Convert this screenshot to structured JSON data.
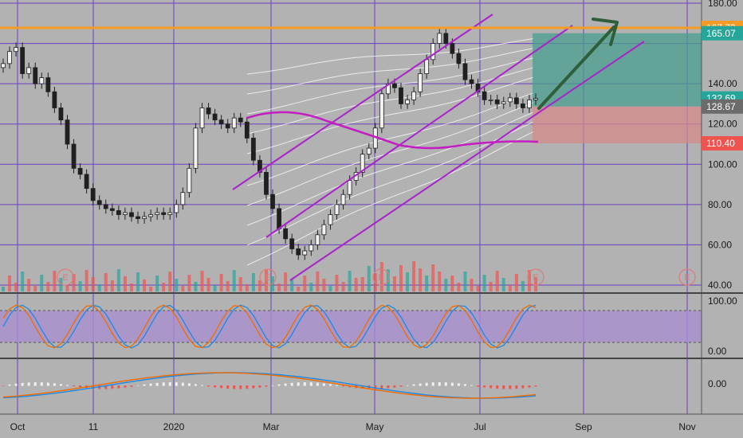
{
  "chart_data": {
    "type": "candlestick",
    "price_axis": {
      "ylim": [
        40,
        180
      ],
      "ticks": [
        "180.00",
        "140.00",
        "120.00",
        "100.00",
        "80.00",
        "60.00",
        "40.00"
      ],
      "tick_values": [
        180,
        140,
        120,
        100,
        80,
        60,
        40
      ]
    },
    "time_axis": {
      "labels": [
        "Oct",
        "11",
        "2020",
        "Mar",
        "May",
        "Jul",
        "Sep",
        "Nov"
      ]
    },
    "price_badges": [
      {
        "label": "167.72",
        "value": 167.72,
        "color": "#f59a23"
      },
      {
        "label": "165.07",
        "value": 165.07,
        "color": "#26a69a"
      },
      {
        "label": "132.69",
        "value": 132.69,
        "color": "#26a69a"
      },
      {
        "label": "128.67",
        "value": 128.67,
        "color": "#6b6b6b"
      },
      {
        "label": "110.40",
        "value": 110.4,
        "color": "#ef5350"
      }
    ],
    "horizontal_line": {
      "value": 167.72,
      "color": "#f59a23"
    },
    "earnings_markers": {
      "label": "E",
      "count": 5
    },
    "closes": [
      150,
      156,
      158,
      145,
      148,
      140,
      143,
      136,
      128,
      122,
      110,
      98,
      95,
      88,
      82,
      80,
      78,
      77,
      75,
      76,
      74,
      73,
      74,
      75,
      76,
      75,
      76,
      80,
      86,
      98,
      118,
      128,
      125,
      122,
      120,
      118,
      123,
      121,
      113,
      102,
      96,
      85,
      78,
      68,
      63,
      58,
      55,
      57,
      60,
      65,
      70,
      75,
      80,
      85,
      92,
      96,
      105,
      108,
      118,
      135,
      140,
      138,
      130,
      132,
      136,
      145,
      152,
      160,
      165,
      160,
      155,
      150,
      142,
      140,
      136,
      132,
      132,
      130,
      131,
      133,
      130,
      128,
      132,
      132.69
    ],
    "trade_box": {
      "entry": 128.67,
      "target": 165.07,
      "stop": 110.4
    },
    "indicator_panels": [
      {
        "name": "stochastic",
        "ticks": [
          "100.00",
          "0.00"
        ]
      },
      {
        "name": "macd",
        "ticks": [
          "0.00"
        ]
      }
    ],
    "colors": {
      "up": "#26a69a",
      "down": "#ef5350",
      "channel": "#aa22cc",
      "arrow": "#2e5e3a",
      "grid": "#6a3fc0"
    }
  }
}
